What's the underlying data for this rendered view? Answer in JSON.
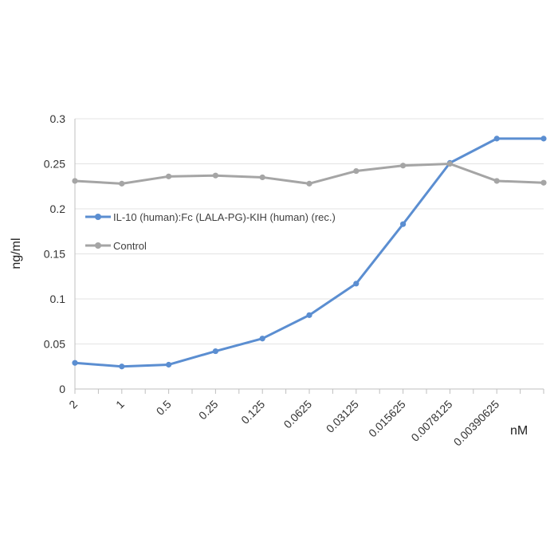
{
  "chart_data": {
    "type": "line",
    "title": "",
    "xlabel": "nM",
    "ylabel": "ng/ml",
    "categories": [
      "2",
      "1",
      "0.5",
      "0.25",
      "0.125",
      "0.0625",
      "0.03125",
      "0.015625",
      "0.0078125",
      "0.00390625",
      ""
    ],
    "ylim": [
      0,
      0.3
    ],
    "yticks": [
      "0",
      "0.05",
      "0.1",
      "0.15",
      "0.2",
      "0.25",
      "0.3"
    ],
    "grid": true,
    "legend_position": "left",
    "series": [
      {
        "name": "IL-10 (human):Fc (LALA-PG)-KIH (human) (rec.)",
        "color": "#5B8ED1",
        "values": [
          0.029,
          0.025,
          0.027,
          0.042,
          0.056,
          0.082,
          0.117,
          0.183,
          0.251,
          0.278,
          0.278
        ]
      },
      {
        "name": "Control",
        "color": "#A5A5A5",
        "values": [
          0.231,
          0.228,
          0.236,
          0.237,
          0.235,
          0.228,
          0.242,
          0.248,
          0.25,
          0.231,
          0.229
        ]
      }
    ]
  }
}
